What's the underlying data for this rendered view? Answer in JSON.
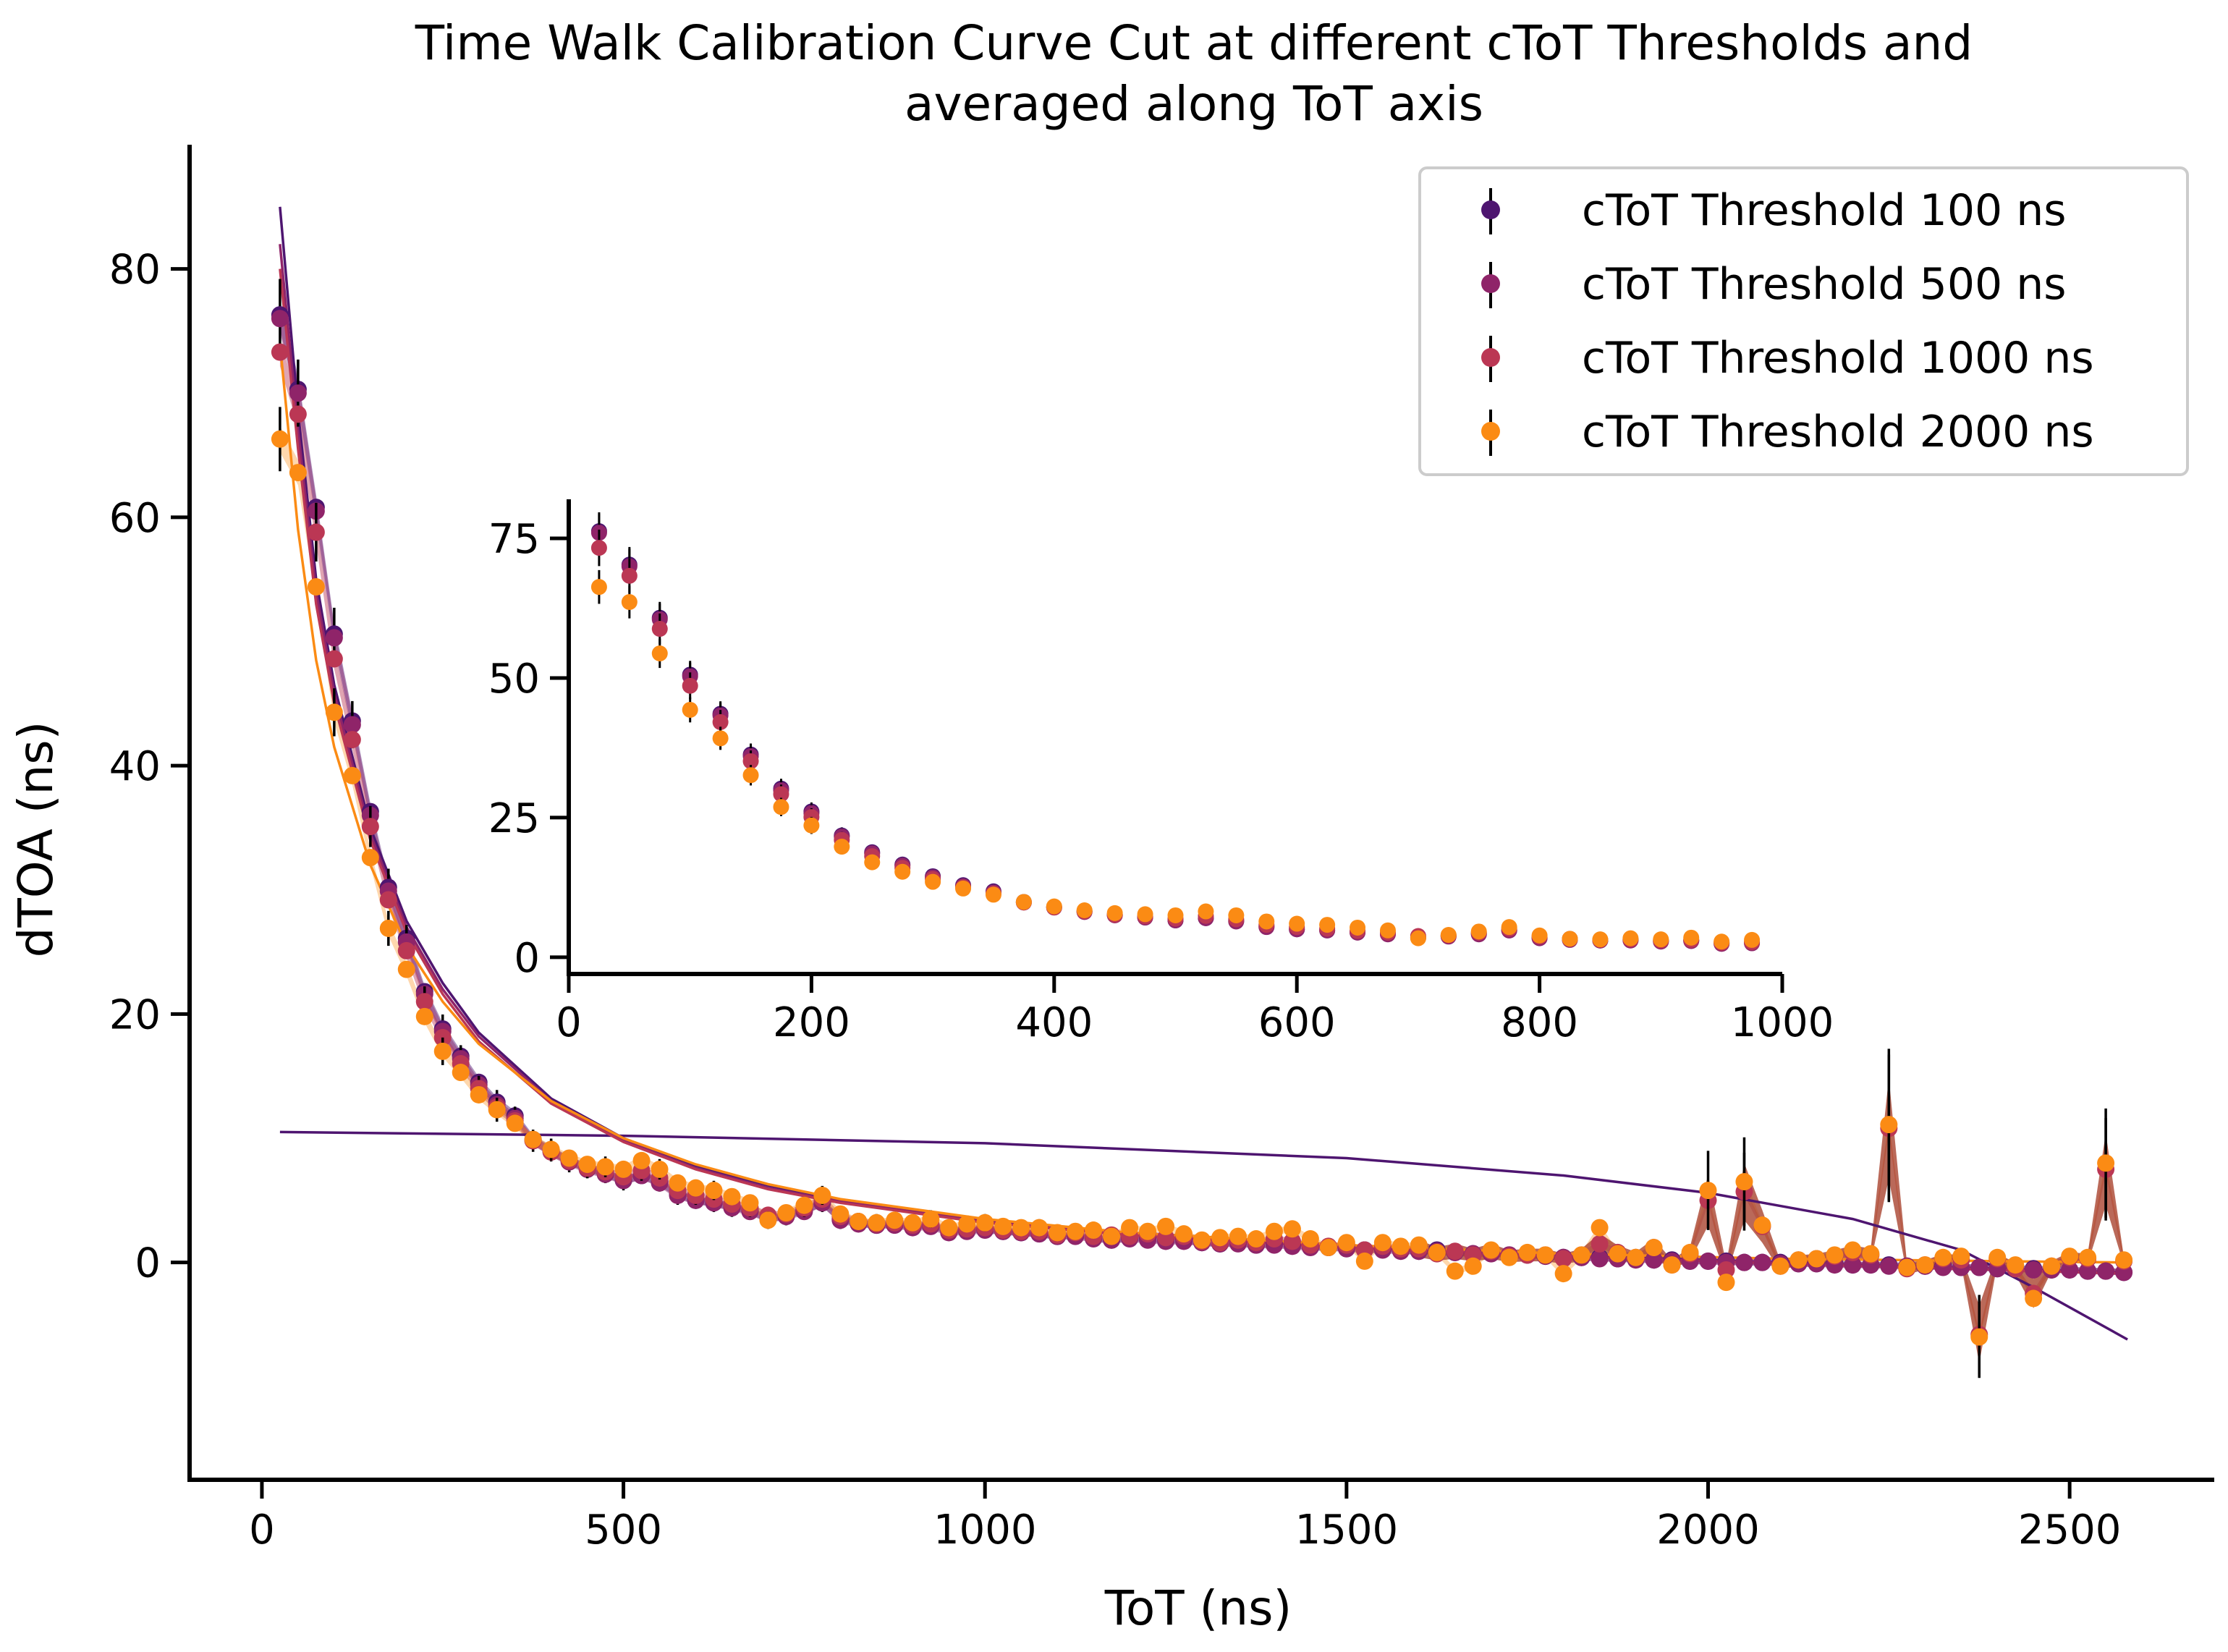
{
  "chart_data": {
    "type": "scatter",
    "title": "Time Walk Calibration Curve Cut at different cToT Thresholds and",
    "title_line2": "averaged along ToT axis",
    "xlabel": "ToT (ns)",
    "ylabel": "dTOA (ns)",
    "xlim": [
      -100,
      2700
    ],
    "ylim": [
      -17.5,
      90
    ],
    "xticks": [
      0,
      500,
      1000,
      1500,
      2000,
      2500
    ],
    "yticks": [
      0,
      20,
      40,
      60,
      80
    ],
    "grid": false,
    "legend_position": "top-right",
    "series": [
      {
        "name": "cToT Threshold 100 ns",
        "color": "#4e1570",
        "x": [
          25,
          50,
          75,
          100,
          125,
          150,
          175,
          200,
          225,
          250,
          275,
          300,
          325,
          350,
          375,
          400,
          425,
          450,
          475,
          500,
          525,
          550,
          575,
          600,
          625,
          650,
          675,
          700,
          725,
          750,
          775,
          800,
          825,
          850,
          875,
          900,
          925,
          950,
          975,
          1000,
          1025,
          1050,
          1075,
          1100,
          1125,
          1150,
          1175,
          1200,
          1225,
          1250,
          1275,
          1300,
          1325,
          1350,
          1375,
          1400,
          1425,
          1450,
          1475,
          1500,
          1525,
          1550,
          1575,
          1600,
          1625,
          1650,
          1675,
          1700,
          1725,
          1750,
          1775,
          1800,
          1825,
          1850,
          1875,
          1900,
          1925,
          1950,
          1975,
          2000,
          2025,
          2050,
          2075,
          2100,
          2125,
          2150,
          2175,
          2200,
          2225,
          2250,
          2275,
          2300,
          2325,
          2350,
          2375,
          2400,
          2425,
          2450,
          2475,
          2500,
          2525,
          2550,
          2575
        ],
        "y": [
          76.3,
          70.3,
          60.8,
          50.6,
          43.6,
          36.3,
          30.2,
          26.1,
          21.8,
          18.8,
          16.6,
          14.5,
          12.9,
          11.8,
          9.9,
          9.0,
          8.2,
          7.6,
          7.2,
          6.6,
          7.0,
          6.5,
          5.5,
          5.0,
          4.8,
          4.5,
          4.2,
          3.5,
          3.8,
          4.2,
          4.8,
          3.5,
          3.2,
          3.0,
          3.1,
          2.9,
          3.0,
          2.5,
          2.6,
          2.7,
          2.5,
          2.4,
          2.3,
          2.1,
          2.2,
          2.0,
          1.8,
          2.0,
          1.9,
          1.8,
          1.8,
          1.6,
          1.5,
          1.6,
          1.4,
          1.5,
          1.4,
          1.3,
          1.2,
          1.2,
          1.0,
          1.1,
          1.0,
          0.9,
          1.0,
          0.8,
          0.7,
          0.8,
          0.6,
          0.6,
          0.5,
          0.4,
          0.4,
          0.4,
          0.3,
          0.3,
          0.2,
          0.2,
          0.1,
          0.1,
          0.1,
          0.0,
          0.0,
          0.0,
          -0.1,
          -0.1,
          -0.1,
          -0.2,
          -0.2,
          -0.2,
          -0.3,
          -0.3,
          -0.3,
          -0.4,
          -0.4,
          -0.5,
          -0.5,
          -0.5,
          -0.6,
          -0.6,
          -0.7,
          -0.7,
          -0.8
        ],
        "fit": [
          [
            25,
            85.0
          ],
          [
            50,
            68.5
          ],
          [
            75,
            55.0
          ],
          [
            100,
            46.5
          ],
          [
            150,
            35.0
          ],
          [
            200,
            27.5
          ],
          [
            250,
            22.5
          ],
          [
            300,
            18.5
          ],
          [
            400,
            13.2
          ],
          [
            500,
            10.0
          ],
          [
            600,
            7.8
          ],
          [
            700,
            6.2
          ],
          [
            800,
            5.0
          ],
          [
            1000,
            3.4
          ],
          [
            1200,
            2.4
          ],
          [
            1500,
            1.4
          ],
          [
            1800,
            0.6
          ],
          [
            2100,
            0.0
          ],
          [
            2400,
            -0.5
          ],
          [
            2580,
            -0.8
          ]
        ],
        "fit_secondary": [
          [
            25,
            10.5
          ],
          [
            500,
            10.2
          ],
          [
            1000,
            9.6
          ],
          [
            1500,
            8.4
          ],
          [
            1800,
            7.0
          ],
          [
            2000,
            5.6
          ],
          [
            2200,
            3.5
          ],
          [
            2350,
            1.0
          ],
          [
            2450,
            -2.0
          ],
          [
            2580,
            -6.2
          ]
        ]
      },
      {
        "name": "cToT Threshold 500 ns",
        "color": "#8f2469",
        "x": [
          25,
          50,
          75,
          100,
          125,
          150,
          175,
          200,
          225,
          250,
          275,
          300,
          325,
          350,
          375,
          400,
          425,
          450,
          475,
          500,
          525,
          550,
          575,
          600,
          625,
          650,
          675,
          700,
          725,
          750,
          775,
          800,
          825,
          850,
          875,
          900,
          925,
          950,
          975,
          1000,
          1025,
          1050,
          1075,
          1100,
          1125,
          1150,
          1175,
          1200,
          1225,
          1250,
          1275,
          1300,
          1325,
          1350,
          1375,
          1400,
          1425,
          1450,
          1475,
          1500,
          1525,
          1550,
          1575,
          1600,
          1625,
          1650,
          1675,
          1700,
          1725,
          1750,
          1775,
          1800,
          1825,
          1850,
          1875,
          1900,
          1925,
          1950,
          1975,
          2000,
          2025,
          2050,
          2075,
          2100,
          2125,
          2150,
          2175,
          2200,
          2225,
          2250,
          2275,
          2300,
          2325,
          2350,
          2375,
          2400,
          2425,
          2450,
          2475,
          2500,
          2525,
          2550,
          2575
        ],
        "y": [
          76.0,
          70.0,
          60.5,
          50.3,
          43.3,
          36.0,
          29.9,
          25.8,
          21.6,
          18.6,
          16.4,
          14.3,
          12.7,
          11.6,
          9.8,
          8.9,
          8.1,
          7.5,
          7.1,
          6.6,
          7.0,
          6.4,
          5.4,
          5.0,
          4.8,
          4.4,
          4.1,
          3.5,
          3.7,
          4.1,
          4.8,
          3.4,
          3.1,
          3.0,
          3.0,
          2.8,
          2.9,
          2.4,
          2.5,
          2.6,
          2.5,
          2.4,
          2.3,
          2.1,
          2.1,
          1.9,
          1.8,
          1.9,
          1.8,
          1.7,
          1.7,
          1.6,
          1.5,
          1.5,
          1.4,
          1.4,
          1.3,
          1.2,
          1.2,
          1.1,
          1.0,
          1.0,
          0.9,
          0.9,
          0.9,
          0.8,
          0.7,
          0.7,
          0.6,
          0.6,
          0.5,
          0.4,
          0.4,
          0.3,
          0.3,
          0.2,
          0.2,
          0.1,
          0.1,
          0.1,
          0.0,
          0.0,
          0.0,
          -0.1,
          -0.1,
          -0.1,
          -0.2,
          -0.2,
          -0.2,
          -0.3,
          -0.3,
          -0.3,
          -0.4,
          -0.4,
          -0.4,
          -0.5,
          -0.5,
          -0.6,
          -0.6,
          -0.6,
          -0.7,
          -0.7,
          -0.8
        ],
        "fit": [
          [
            25,
            82.0
          ],
          [
            50,
            67.0
          ],
          [
            75,
            54.0
          ],
          [
            100,
            45.8
          ],
          [
            150,
            34.5
          ],
          [
            200,
            27.0
          ],
          [
            250,
            22.0
          ],
          [
            300,
            18.2
          ],
          [
            400,
            13.0
          ],
          [
            500,
            9.8
          ],
          [
            600,
            7.6
          ],
          [
            700,
            6.0
          ],
          [
            800,
            4.9
          ],
          [
            1000,
            3.3
          ],
          [
            1200,
            2.3
          ],
          [
            1500,
            1.3
          ],
          [
            1800,
            0.5
          ],
          [
            2100,
            0.0
          ],
          [
            2400,
            -0.5
          ],
          [
            2580,
            -0.8
          ]
        ]
      },
      {
        "name": "cToT Threshold 1000 ns",
        "color": "#bb3754",
        "x": [
          25,
          50,
          75,
          100,
          125,
          150,
          175,
          200,
          225,
          250,
          275,
          300,
          325,
          350,
          375,
          400,
          425,
          450,
          475,
          500,
          525,
          550,
          575,
          600,
          625,
          650,
          675,
          700,
          725,
          750,
          775,
          800,
          825,
          850,
          875,
          900,
          925,
          950,
          975,
          1000,
          1025,
          1050,
          1075,
          1100,
          1125,
          1150,
          1175,
          1200,
          1225,
          1250,
          1275,
          1300,
          1325,
          1350,
          1375,
          1400,
          1425,
          1450,
          1475,
          1500,
          1525,
          1550,
          1575,
          1600,
          1625,
          1650,
          1675,
          1700,
          1725,
          1750,
          1775,
          1800,
          1825,
          1850,
          1875,
          1900,
          1925,
          1950,
          1975,
          2000,
          2025,
          2050,
          2075,
          2100,
          2125,
          2150,
          2175,
          2200,
          2225,
          2250,
          2275,
          2300,
          2325,
          2350,
          2375,
          2400,
          2425,
          2450,
          2475,
          2500,
          2525,
          2550,
          2575
        ],
        "y": [
          73.3,
          68.3,
          58.8,
          48.6,
          42.1,
          35.1,
          29.2,
          25.1,
          21.0,
          18.1,
          16.0,
          14.0,
          12.5,
          11.4,
          9.8,
          8.9,
          8.2,
          7.6,
          7.3,
          6.9,
          7.4,
          6.8,
          5.8,
          5.4,
          5.1,
          4.7,
          4.4,
          3.8,
          3.9,
          4.4,
          5.1,
          3.7,
          3.3,
          3.1,
          3.2,
          3.0,
          3.1,
          2.6,
          2.7,
          2.8,
          2.6,
          2.5,
          2.5,
          2.2,
          2.4,
          2.1,
          2.2,
          2.1,
          2.3,
          2.0,
          2.1,
          1.7,
          1.6,
          1.8,
          1.6,
          1.9,
          1.7,
          1.4,
          1.3,
          1.4,
          1.0,
          1.3,
          1.1,
          1.1,
          0.7,
          0.9,
          0.6,
          0.9,
          0.5,
          0.6,
          0.6,
          0.3,
          0.6,
          1.5,
          0.8,
          0.4,
          1.2,
          -0.2,
          0.7,
          5.0,
          -0.6,
          5.7,
          2.9,
          -0.3,
          0.2,
          0.3,
          0.5,
          0.8,
          0.6,
          10.8,
          -0.5,
          -0.2,
          0.3,
          0.2,
          -5.8,
          0.3,
          -0.5,
          -2.5,
          -0.3,
          0.4,
          0.3,
          7.5,
          0.1
        ],
        "fit": [
          [
            25,
            80.0
          ],
          [
            50,
            65.5
          ],
          [
            75,
            53.0
          ],
          [
            100,
            45.0
          ],
          [
            150,
            34.0
          ],
          [
            200,
            26.6
          ],
          [
            250,
            21.6
          ],
          [
            300,
            17.8
          ],
          [
            400,
            12.8
          ],
          [
            500,
            9.7
          ],
          [
            600,
            7.5
          ],
          [
            700,
            5.9
          ],
          [
            800,
            4.8
          ],
          [
            1000,
            3.2
          ],
          [
            1200,
            2.2
          ],
          [
            1500,
            1.2
          ],
          [
            1800,
            0.5
          ],
          [
            2100,
            -0.1
          ],
          [
            2400,
            -0.6
          ],
          [
            2580,
            -0.9
          ]
        ]
      },
      {
        "name": "cToT Threshold 2000 ns",
        "color": "#fb8b14",
        "x": [
          25,
          50,
          75,
          100,
          125,
          150,
          175,
          200,
          225,
          250,
          275,
          300,
          325,
          350,
          375,
          400,
          425,
          450,
          475,
          500,
          525,
          550,
          575,
          600,
          625,
          650,
          675,
          700,
          725,
          750,
          775,
          800,
          825,
          850,
          875,
          900,
          925,
          950,
          975,
          1000,
          1025,
          1050,
          1075,
          1100,
          1125,
          1150,
          1175,
          1200,
          1225,
          1250,
          1275,
          1300,
          1325,
          1350,
          1375,
          1400,
          1425,
          1450,
          1475,
          1500,
          1525,
          1550,
          1575,
          1600,
          1625,
          1650,
          1675,
          1700,
          1725,
          1750,
          1775,
          1800,
          1825,
          1850,
          1875,
          1900,
          1925,
          1950,
          1975,
          2000,
          2025,
          2050,
          2075,
          2100,
          2125,
          2150,
          2175,
          2200,
          2225,
          2250,
          2275,
          2300,
          2325,
          2350,
          2375,
          2400,
          2425,
          2450,
          2475,
          2500,
          2525,
          2550,
          2575
        ],
        "y": [
          66.3,
          63.6,
          54.4,
          44.3,
          39.2,
          32.6,
          26.9,
          23.6,
          19.8,
          17.0,
          15.3,
          13.5,
          12.3,
          11.2,
          9.9,
          9.1,
          8.4,
          7.9,
          7.7,
          7.5,
          8.2,
          7.5,
          6.4,
          6.0,
          5.8,
          5.3,
          4.8,
          3.4,
          4.0,
          4.6,
          5.4,
          3.9,
          3.3,
          3.2,
          3.4,
          3.2,
          3.5,
          2.8,
          3.1,
          3.2,
          2.9,
          2.8,
          2.8,
          2.4,
          2.5,
          2.6,
          2.1,
          2.8,
          2.5,
          2.9,
          2.3,
          1.8,
          2.0,
          2.1,
          1.9,
          2.5,
          2.7,
          1.9,
          1.2,
          1.6,
          0.1,
          1.6,
          1.3,
          1.4,
          0.8,
          -0.7,
          -0.3,
          1.0,
          0.4,
          0.8,
          0.6,
          -0.9,
          0.6,
          2.8,
          0.7,
          0.4,
          1.2,
          -0.2,
          0.8,
          5.8,
          -1.6,
          6.5,
          3.0,
          -0.3,
          0.2,
          0.3,
          0.6,
          1.0,
          0.7,
          11.1,
          -0.4,
          -0.2,
          0.4,
          0.5,
          -6.0,
          0.4,
          -0.2,
          -2.9,
          -0.3,
          0.5,
          0.4,
          8.0,
          0.2
        ],
        "fit": [
          [
            25,
            74.0
          ],
          [
            50,
            59.0
          ],
          [
            75,
            48.5
          ],
          [
            100,
            41.5
          ],
          [
            150,
            32.0
          ],
          [
            200,
            25.5
          ],
          [
            250,
            21.0
          ],
          [
            300,
            17.6
          ],
          [
            400,
            13.0
          ],
          [
            500,
            10.0
          ],
          [
            600,
            7.9
          ],
          [
            700,
            6.3
          ],
          [
            800,
            5.1
          ],
          [
            1000,
            3.5
          ],
          [
            1200,
            2.4
          ],
          [
            1500,
            1.4
          ],
          [
            1800,
            0.7
          ],
          [
            2100,
            0.3
          ],
          [
            2400,
            0.1
          ],
          [
            2580,
            0.0
          ]
        ]
      }
    ],
    "inset": {
      "type": "scatter",
      "xlim": [
        0,
        1000
      ],
      "ylim": [
        -3,
        82
      ],
      "xticks": [
        0,
        200,
        400,
        600,
        800,
        1000
      ],
      "yticks": [
        0,
        25,
        50,
        75
      ]
    }
  }
}
